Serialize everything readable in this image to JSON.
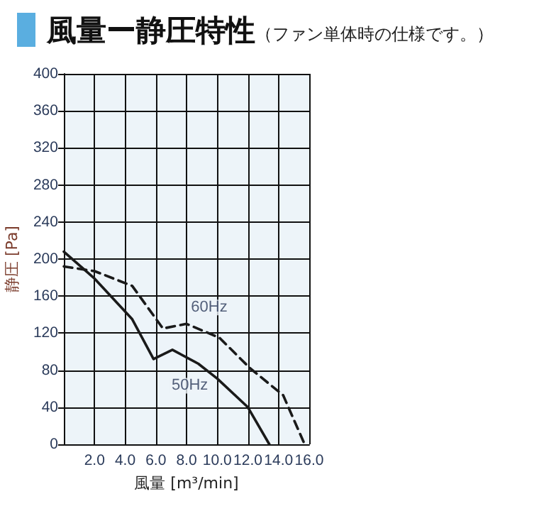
{
  "chart_data": {
    "type": "line",
    "title": "風量ー静圧特性",
    "subtitle": "（ファン単体時の仕様です。）",
    "xlabel": "風量 [m³/min]",
    "ylabel": "静圧 [Pa]",
    "series": [
      {
        "color": "#1a1a1a",
        "line_style": "solid",
        "x": [
          0,
          2.0,
          4.46,
          5.85,
          7.08,
          8.77,
          10.0,
          12.0,
          13.4
        ],
        "values": [
          208,
          179,
          135,
          92,
          102,
          87,
          71,
          40,
          0
        ]
      },
      {
        "color": "#1a1a1a",
        "line_style": "dashed",
        "x": [
          0,
          2.0,
          4.46,
          6.46,
          8.0,
          10.15,
          12.15,
          14.3,
          15.7
        ],
        "values": [
          192,
          187,
          171,
          125,
          130,
          115,
          82,
          53,
          0
        ]
      }
    ],
    "annotations": [
      {
        "text": "60Hz",
        "x": 8.0,
        "y": 130
      },
      {
        "text": "50Hz",
        "x": 8.77,
        "y": 87
      }
    ],
    "xlim": [
      0,
      16
    ],
    "xticks": [
      {
        "value": 0,
        "label": null
      },
      {
        "value": 2,
        "label": "2.0"
      },
      {
        "value": 4,
        "label": "4.0"
      },
      {
        "value": 6,
        "label": "6.0"
      },
      {
        "value": 8,
        "label": "8.0"
      },
      {
        "value": 10,
        "label": "10.0"
      },
      {
        "value": 12,
        "label": "12.0"
      },
      {
        "value": 14,
        "label": "14.0"
      },
      {
        "value": 16,
        "label": "16.0"
      }
    ],
    "ylim": [
      0,
      400
    ],
    "yticks": [
      0,
      40,
      80,
      120,
      160,
      200,
      240,
      280,
      320,
      360,
      400
    ],
    "grid": true,
    "marker": "none"
  }
}
